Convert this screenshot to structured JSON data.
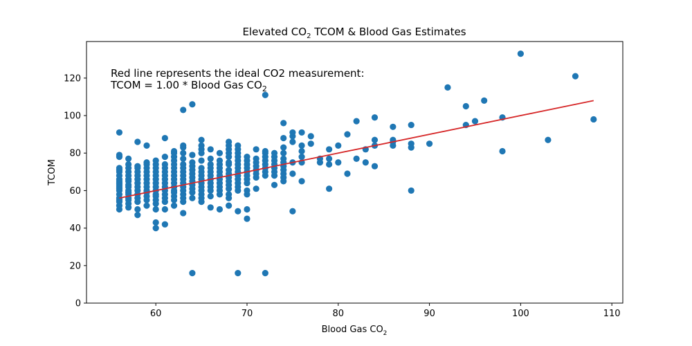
{
  "chart_data": {
    "type": "scatter",
    "title": {
      "prefix": "Elevated CO",
      "sub": "2",
      "suffix": " TCOM & Blood Gas Estimates"
    },
    "xlabel": {
      "prefix": "Blood Gas CO",
      "sub": "2"
    },
    "ylabel": "TCOM",
    "xlim": [
      52.4,
      111.2
    ],
    "ylim": [
      0,
      139.5
    ],
    "xticks": [
      60,
      70,
      80,
      90,
      100,
      110
    ],
    "yticks": [
      0,
      20,
      40,
      60,
      80,
      100,
      120
    ],
    "grid": false,
    "point_color": "#1f77b4",
    "line_color": "#d62728",
    "annotation": {
      "line1": "Red line represents the ideal CO2 measurement:",
      "line2_prefix": "TCOM = 1.00 * Blood Gas CO",
      "line2_sub": "2"
    },
    "fit_line": {
      "x": [
        56,
        108
      ],
      "y": [
        56,
        108
      ]
    },
    "points": [
      [
        56,
        50
      ],
      [
        56,
        52
      ],
      [
        56,
        54
      ],
      [
        56,
        55
      ],
      [
        56,
        56
      ],
      [
        56,
        58
      ],
      [
        56,
        60
      ],
      [
        56,
        61
      ],
      [
        56,
        62
      ],
      [
        56,
        63
      ],
      [
        56,
        64
      ],
      [
        56,
        65
      ],
      [
        56,
        66
      ],
      [
        56,
        68
      ],
      [
        56,
        70
      ],
      [
        56,
        71
      ],
      [
        56,
        72
      ],
      [
        56,
        78
      ],
      [
        56,
        79
      ],
      [
        56,
        91
      ],
      [
        57,
        51
      ],
      [
        57,
        53
      ],
      [
        57,
        55
      ],
      [
        57,
        56
      ],
      [
        57,
        58
      ],
      [
        57,
        59
      ],
      [
        57,
        60
      ],
      [
        57,
        62
      ],
      [
        57,
        63
      ],
      [
        57,
        65
      ],
      [
        57,
        66
      ],
      [
        57,
        68
      ],
      [
        57,
        70
      ],
      [
        57,
        72
      ],
      [
        57,
        74
      ],
      [
        57,
        77
      ],
      [
        58,
        47
      ],
      [
        58,
        50
      ],
      [
        58,
        54
      ],
      [
        58,
        56
      ],
      [
        58,
        58
      ],
      [
        58,
        60
      ],
      [
        58,
        62
      ],
      [
        58,
        64
      ],
      [
        58,
        66
      ],
      [
        58,
        68
      ],
      [
        58,
        70
      ],
      [
        58,
        72
      ],
      [
        58,
        73
      ],
      [
        58,
        86
      ],
      [
        59,
        52
      ],
      [
        59,
        55
      ],
      [
        59,
        57
      ],
      [
        59,
        59
      ],
      [
        59,
        60
      ],
      [
        59,
        62
      ],
      [
        59,
        64
      ],
      [
        59,
        66
      ],
      [
        59,
        68
      ],
      [
        59,
        70
      ],
      [
        59,
        72
      ],
      [
        59,
        74
      ],
      [
        59,
        75
      ],
      [
        59,
        84
      ],
      [
        60,
        40
      ],
      [
        60,
        43
      ],
      [
        60,
        50
      ],
      [
        60,
        53
      ],
      [
        60,
        55
      ],
      [
        60,
        57
      ],
      [
        60,
        58
      ],
      [
        60,
        60
      ],
      [
        60,
        62
      ],
      [
        60,
        64
      ],
      [
        60,
        66
      ],
      [
        60,
        68
      ],
      [
        60,
        70
      ],
      [
        60,
        72
      ],
      [
        60,
        74
      ],
      [
        60,
        76
      ],
      [
        61,
        42
      ],
      [
        61,
        50
      ],
      [
        61,
        54
      ],
      [
        61,
        56
      ],
      [
        61,
        58
      ],
      [
        61,
        60
      ],
      [
        61,
        62
      ],
      [
        61,
        64
      ],
      [
        61,
        66
      ],
      [
        61,
        68
      ],
      [
        61,
        70
      ],
      [
        61,
        72
      ],
      [
        61,
        74
      ],
      [
        61,
        78
      ],
      [
        61,
        88
      ],
      [
        62,
        52
      ],
      [
        62,
        55
      ],
      [
        62,
        57
      ],
      [
        62,
        59
      ],
      [
        62,
        60
      ],
      [
        62,
        62
      ],
      [
        62,
        64
      ],
      [
        62,
        66
      ],
      [
        62,
        68
      ],
      [
        62,
        70
      ],
      [
        62,
        72
      ],
      [
        62,
        74
      ],
      [
        62,
        76
      ],
      [
        62,
        78
      ],
      [
        62,
        80
      ],
      [
        62,
        81
      ],
      [
        63,
        48
      ],
      [
        63,
        54
      ],
      [
        63,
        56
      ],
      [
        63,
        58
      ],
      [
        63,
        60
      ],
      [
        63,
        62
      ],
      [
        63,
        64
      ],
      [
        63,
        66
      ],
      [
        63,
        68
      ],
      [
        63,
        70
      ],
      [
        63,
        72
      ],
      [
        63,
        74
      ],
      [
        63,
        77
      ],
      [
        63,
        80
      ],
      [
        63,
        83
      ],
      [
        63,
        84
      ],
      [
        63,
        103
      ],
      [
        64,
        16
      ],
      [
        64,
        56
      ],
      [
        64,
        59
      ],
      [
        64,
        61
      ],
      [
        64,
        63
      ],
      [
        64,
        65
      ],
      [
        64,
        67
      ],
      [
        64,
        69
      ],
      [
        64,
        71
      ],
      [
        64,
        73
      ],
      [
        64,
        75
      ],
      [
        64,
        79
      ],
      [
        64,
        106
      ],
      [
        65,
        54
      ],
      [
        65,
        56
      ],
      [
        65,
        58
      ],
      [
        65,
        60
      ],
      [
        65,
        62
      ],
      [
        65,
        64
      ],
      [
        65,
        66
      ],
      [
        65,
        68
      ],
      [
        65,
        70
      ],
      [
        65,
        72
      ],
      [
        65,
        76
      ],
      [
        65,
        80
      ],
      [
        65,
        82
      ],
      [
        65,
        84
      ],
      [
        65,
        87
      ],
      [
        66,
        51
      ],
      [
        66,
        57
      ],
      [
        66,
        60
      ],
      [
        66,
        62
      ],
      [
        66,
        64
      ],
      [
        66,
        66
      ],
      [
        66,
        68
      ],
      [
        66,
        70
      ],
      [
        66,
        72
      ],
      [
        66,
        74
      ],
      [
        66,
        77
      ],
      [
        66,
        82
      ],
      [
        67,
        50
      ],
      [
        67,
        58
      ],
      [
        67,
        60
      ],
      [
        67,
        62
      ],
      [
        67,
        64
      ],
      [
        67,
        66
      ],
      [
        67,
        68
      ],
      [
        67,
        70
      ],
      [
        67,
        72
      ],
      [
        67,
        74
      ],
      [
        67,
        76
      ],
      [
        67,
        80
      ],
      [
        68,
        52
      ],
      [
        68,
        56
      ],
      [
        68,
        58
      ],
      [
        68,
        61
      ],
      [
        68,
        63
      ],
      [
        68,
        65
      ],
      [
        68,
        67
      ],
      [
        68,
        69
      ],
      [
        68,
        71
      ],
      [
        68,
        74
      ],
      [
        68,
        75
      ],
      [
        68,
        78
      ],
      [
        68,
        80
      ],
      [
        68,
        82
      ],
      [
        68,
        84
      ],
      [
        68,
        86
      ],
      [
        69,
        16
      ],
      [
        69,
        49
      ],
      [
        69,
        60
      ],
      [
        69,
        62
      ],
      [
        69,
        64
      ],
      [
        69,
        66
      ],
      [
        69,
        68
      ],
      [
        69,
        70
      ],
      [
        69,
        72
      ],
      [
        69,
        74
      ],
      [
        69,
        76
      ],
      [
        69,
        78
      ],
      [
        69,
        80
      ],
      [
        69,
        82
      ],
      [
        69,
        84
      ],
      [
        70,
        45
      ],
      [
        70,
        50
      ],
      [
        70,
        58
      ],
      [
        70,
        60
      ],
      [
        70,
        64
      ],
      [
        70,
        66
      ],
      [
        70,
        68
      ],
      [
        70,
        70
      ],
      [
        70,
        72
      ],
      [
        70,
        74
      ],
      [
        70,
        76
      ],
      [
        70,
        78
      ],
      [
        71,
        61
      ],
      [
        71,
        67
      ],
      [
        71,
        69
      ],
      [
        71,
        71
      ],
      [
        71,
        73
      ],
      [
        71,
        75
      ],
      [
        71,
        77
      ],
      [
        71,
        82
      ],
      [
        72,
        16
      ],
      [
        72,
        68
      ],
      [
        72,
        70
      ],
      [
        72,
        72
      ],
      [
        72,
        74
      ],
      [
        72,
        76
      ],
      [
        72,
        78
      ],
      [
        72,
        80
      ],
      [
        72,
        81
      ],
      [
        72,
        111
      ],
      [
        73,
        63
      ],
      [
        73,
        68
      ],
      [
        73,
        70
      ],
      [
        73,
        72
      ],
      [
        73,
        74
      ],
      [
        73,
        76
      ],
      [
        73,
        78
      ],
      [
        73,
        80
      ],
      [
        74,
        65
      ],
      [
        74,
        67
      ],
      [
        74,
        69
      ],
      [
        74,
        71
      ],
      [
        74,
        73
      ],
      [
        74,
        75
      ],
      [
        74,
        77
      ],
      [
        74,
        80
      ],
      [
        74,
        83
      ],
      [
        74,
        88
      ],
      [
        74,
        96
      ],
      [
        75,
        49
      ],
      [
        75,
        69
      ],
      [
        75,
        75
      ],
      [
        75,
        86
      ],
      [
        75,
        89
      ],
      [
        75,
        91
      ],
      [
        76,
        65
      ],
      [
        76,
        75
      ],
      [
        76,
        78
      ],
      [
        76,
        81
      ],
      [
        76,
        84
      ],
      [
        76,
        91
      ],
      [
        77,
        85
      ],
      [
        77,
        89
      ],
      [
        78,
        75
      ],
      [
        78,
        77
      ],
      [
        79,
        61
      ],
      [
        79,
        74
      ],
      [
        79,
        77
      ],
      [
        79,
        82
      ],
      [
        80,
        75
      ],
      [
        80,
        84
      ],
      [
        81,
        69
      ],
      [
        81,
        90
      ],
      [
        82,
        77
      ],
      [
        82,
        97
      ],
      [
        83,
        75
      ],
      [
        83,
        82
      ],
      [
        84,
        73
      ],
      [
        84,
        84
      ],
      [
        84,
        87
      ],
      [
        84,
        99
      ],
      [
        86,
        84
      ],
      [
        86,
        86
      ],
      [
        86,
        87
      ],
      [
        86,
        94
      ],
      [
        88,
        60
      ],
      [
        88,
        83
      ],
      [
        88,
        85
      ],
      [
        88,
        95
      ],
      [
        90,
        85
      ],
      [
        92,
        115
      ],
      [
        94,
        95
      ],
      [
        94,
        105
      ],
      [
        95,
        97
      ],
      [
        96,
        108
      ],
      [
        98,
        81
      ],
      [
        98,
        99
      ],
      [
        100,
        133
      ],
      [
        103,
        87
      ],
      [
        106,
        121
      ],
      [
        108,
        98
      ]
    ]
  }
}
